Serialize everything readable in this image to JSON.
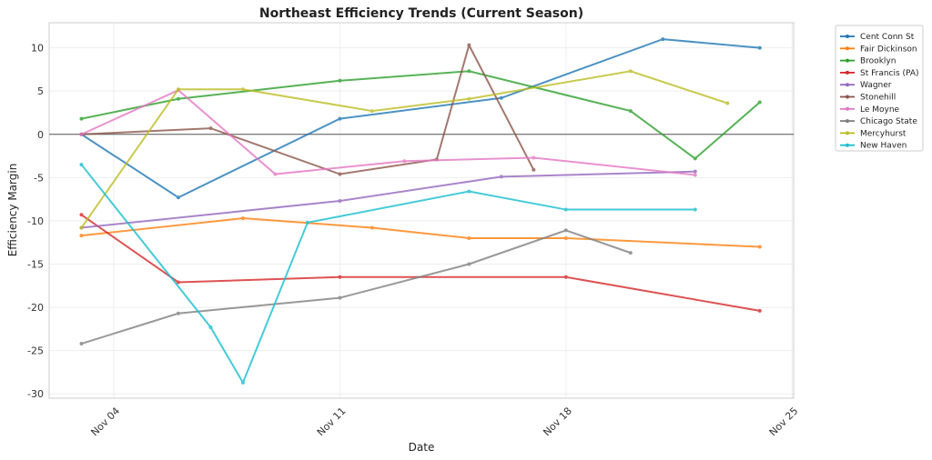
{
  "chart_data": {
    "type": "line",
    "title": "Northeast Efficiency Trends (Current Season)",
    "xlabel": "Date",
    "ylabel": "Efficiency Margin",
    "x_unit": "day of November",
    "xlim": [
      2.0,
      25.05
    ],
    "ylim": [
      -30.5,
      12.9
    ],
    "xticks": [
      {
        "value": 4,
        "label": "Nov 04"
      },
      {
        "value": 11,
        "label": "Nov 11"
      },
      {
        "value": 18,
        "label": "Nov 18"
      },
      {
        "value": 25,
        "label": "Nov 25"
      }
    ],
    "yticks": [
      10,
      5,
      0,
      -5,
      -10,
      -15,
      -20,
      -25,
      -30
    ],
    "grid": true,
    "zero_line": true,
    "legend_position": "outside-top-right",
    "series": [
      {
        "name": "Cent Conn St",
        "color": "#1f77b4",
        "x": [
          3,
          6,
          11,
          16,
          21,
          24
        ],
        "values": [
          0,
          -7.3,
          1.8,
          4.2,
          11.0,
          10.0
        ]
      },
      {
        "name": "Fair Dickinson",
        "color": "#ff7f0e",
        "x": [
          3,
          8,
          12,
          15,
          18,
          24
        ],
        "values": [
          -11.7,
          -9.7,
          -10.8,
          -12.0,
          -12.0,
          -13.0
        ]
      },
      {
        "name": "Brooklyn",
        "color": "#2ca02c",
        "x": [
          3,
          6,
          11,
          15,
          20,
          22,
          24
        ],
        "values": [
          1.8,
          4.1,
          6.2,
          7.3,
          2.7,
          -2.8,
          3.7
        ]
      },
      {
        "name": "St Francis (PA)",
        "color": "#d62728",
        "x": [
          3,
          6,
          11,
          18,
          24
        ],
        "values": [
          -9.3,
          -17.1,
          -16.5,
          -16.5,
          -20.4
        ]
      },
      {
        "name": "Wagner",
        "color": "#9467bd",
        "x": [
          3,
          11,
          16,
          22
        ],
        "values": [
          -10.8,
          -7.7,
          -4.9,
          -4.3
        ]
      },
      {
        "name": "Stonehill",
        "color": "#8c564b",
        "x": [
          3,
          7,
          11,
          14,
          15,
          17
        ],
        "values": [
          0,
          0.7,
          -4.6,
          -2.9,
          10.3,
          -4.1
        ]
      },
      {
        "name": "Le Moyne",
        "color": "#e377c2",
        "x": [
          3,
          6,
          9,
          13,
          17,
          22
        ],
        "values": [
          0,
          5.1,
          -4.6,
          -3.1,
          -2.7,
          -4.7
        ]
      },
      {
        "name": "Chicago State",
        "color": "#7f7f7f",
        "x": [
          3,
          6,
          11,
          15,
          18,
          20
        ],
        "values": [
          -24.2,
          -20.7,
          -18.9,
          -15.0,
          -11.1,
          -13.7
        ]
      },
      {
        "name": "Mercyhurst",
        "color": "#bcbd22",
        "x": [
          3,
          6,
          8,
          12,
          15,
          20,
          23
        ],
        "values": [
          -10.8,
          5.2,
          5.2,
          2.7,
          4.1,
          7.3,
          3.6
        ]
      },
      {
        "name": "New Haven",
        "color": "#17becf",
        "x": [
          3,
          7,
          8,
          10,
          15,
          18,
          22
        ],
        "values": [
          -3.5,
          -22.3,
          -28.7,
          -10.2,
          -6.6,
          -8.7,
          -8.7
        ]
      }
    ]
  }
}
